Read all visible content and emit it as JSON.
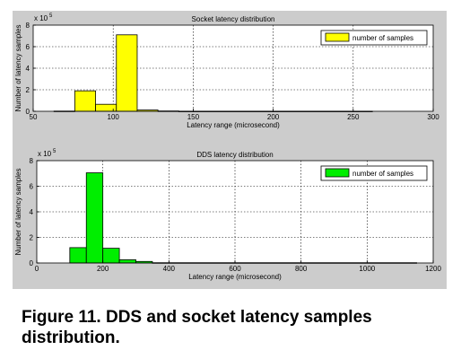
{
  "caption": "Figure 11. DDS and socket latency samples distribution.",
  "chart_data": [
    {
      "type": "bar",
      "title": "Socket latency distribution",
      "xlabel": "Latency range (microsecond)",
      "ylabel": "Number of latency samples",
      "y_exponent_label": "x 10",
      "y_exponent": "5",
      "xlim": [
        50,
        300
      ],
      "ylim": [
        0,
        8
      ],
      "xticks": [
        50,
        100,
        150,
        200,
        250,
        300
      ],
      "yticks": [
        0,
        2,
        4,
        6,
        8
      ],
      "grid": true,
      "legend": "number of samples",
      "legend_position": "top-right",
      "color": "#ffff00",
      "bins": [
        {
          "start": 63,
          "end": 76,
          "value": 0.02
        },
        {
          "start": 76,
          "end": 89,
          "value": 1.9
        },
        {
          "start": 89,
          "end": 102,
          "value": 0.65
        },
        {
          "start": 102,
          "end": 115,
          "value": 7.1
        },
        {
          "start": 115,
          "end": 128,
          "value": 0.12
        },
        {
          "start": 128,
          "end": 141,
          "value": 0.03
        },
        {
          "start": 141,
          "end": 262,
          "value": 0.01
        }
      ]
    },
    {
      "type": "bar",
      "title": "DDS latency distribution",
      "xlabel": "Latency range (microsecond)",
      "ylabel": "Number of latency samples",
      "y_exponent_label": "x 10",
      "y_exponent": "5",
      "xlim": [
        0,
        1200
      ],
      "ylim": [
        0,
        8
      ],
      "xticks": [
        0,
        200,
        400,
        600,
        800,
        1000,
        1200
      ],
      "yticks": [
        0,
        2,
        4,
        6,
        8
      ],
      "grid": true,
      "legend": "number of samples",
      "legend_position": "top-right",
      "color": "#00ee00",
      "bins": [
        {
          "start": 100,
          "end": 150,
          "value": 1.2
        },
        {
          "start": 150,
          "end": 200,
          "value": 7.05
        },
        {
          "start": 200,
          "end": 250,
          "value": 1.15
        },
        {
          "start": 250,
          "end": 300,
          "value": 0.25
        },
        {
          "start": 300,
          "end": 350,
          "value": 0.12
        },
        {
          "start": 350,
          "end": 1150,
          "value": 0.02
        }
      ]
    }
  ]
}
